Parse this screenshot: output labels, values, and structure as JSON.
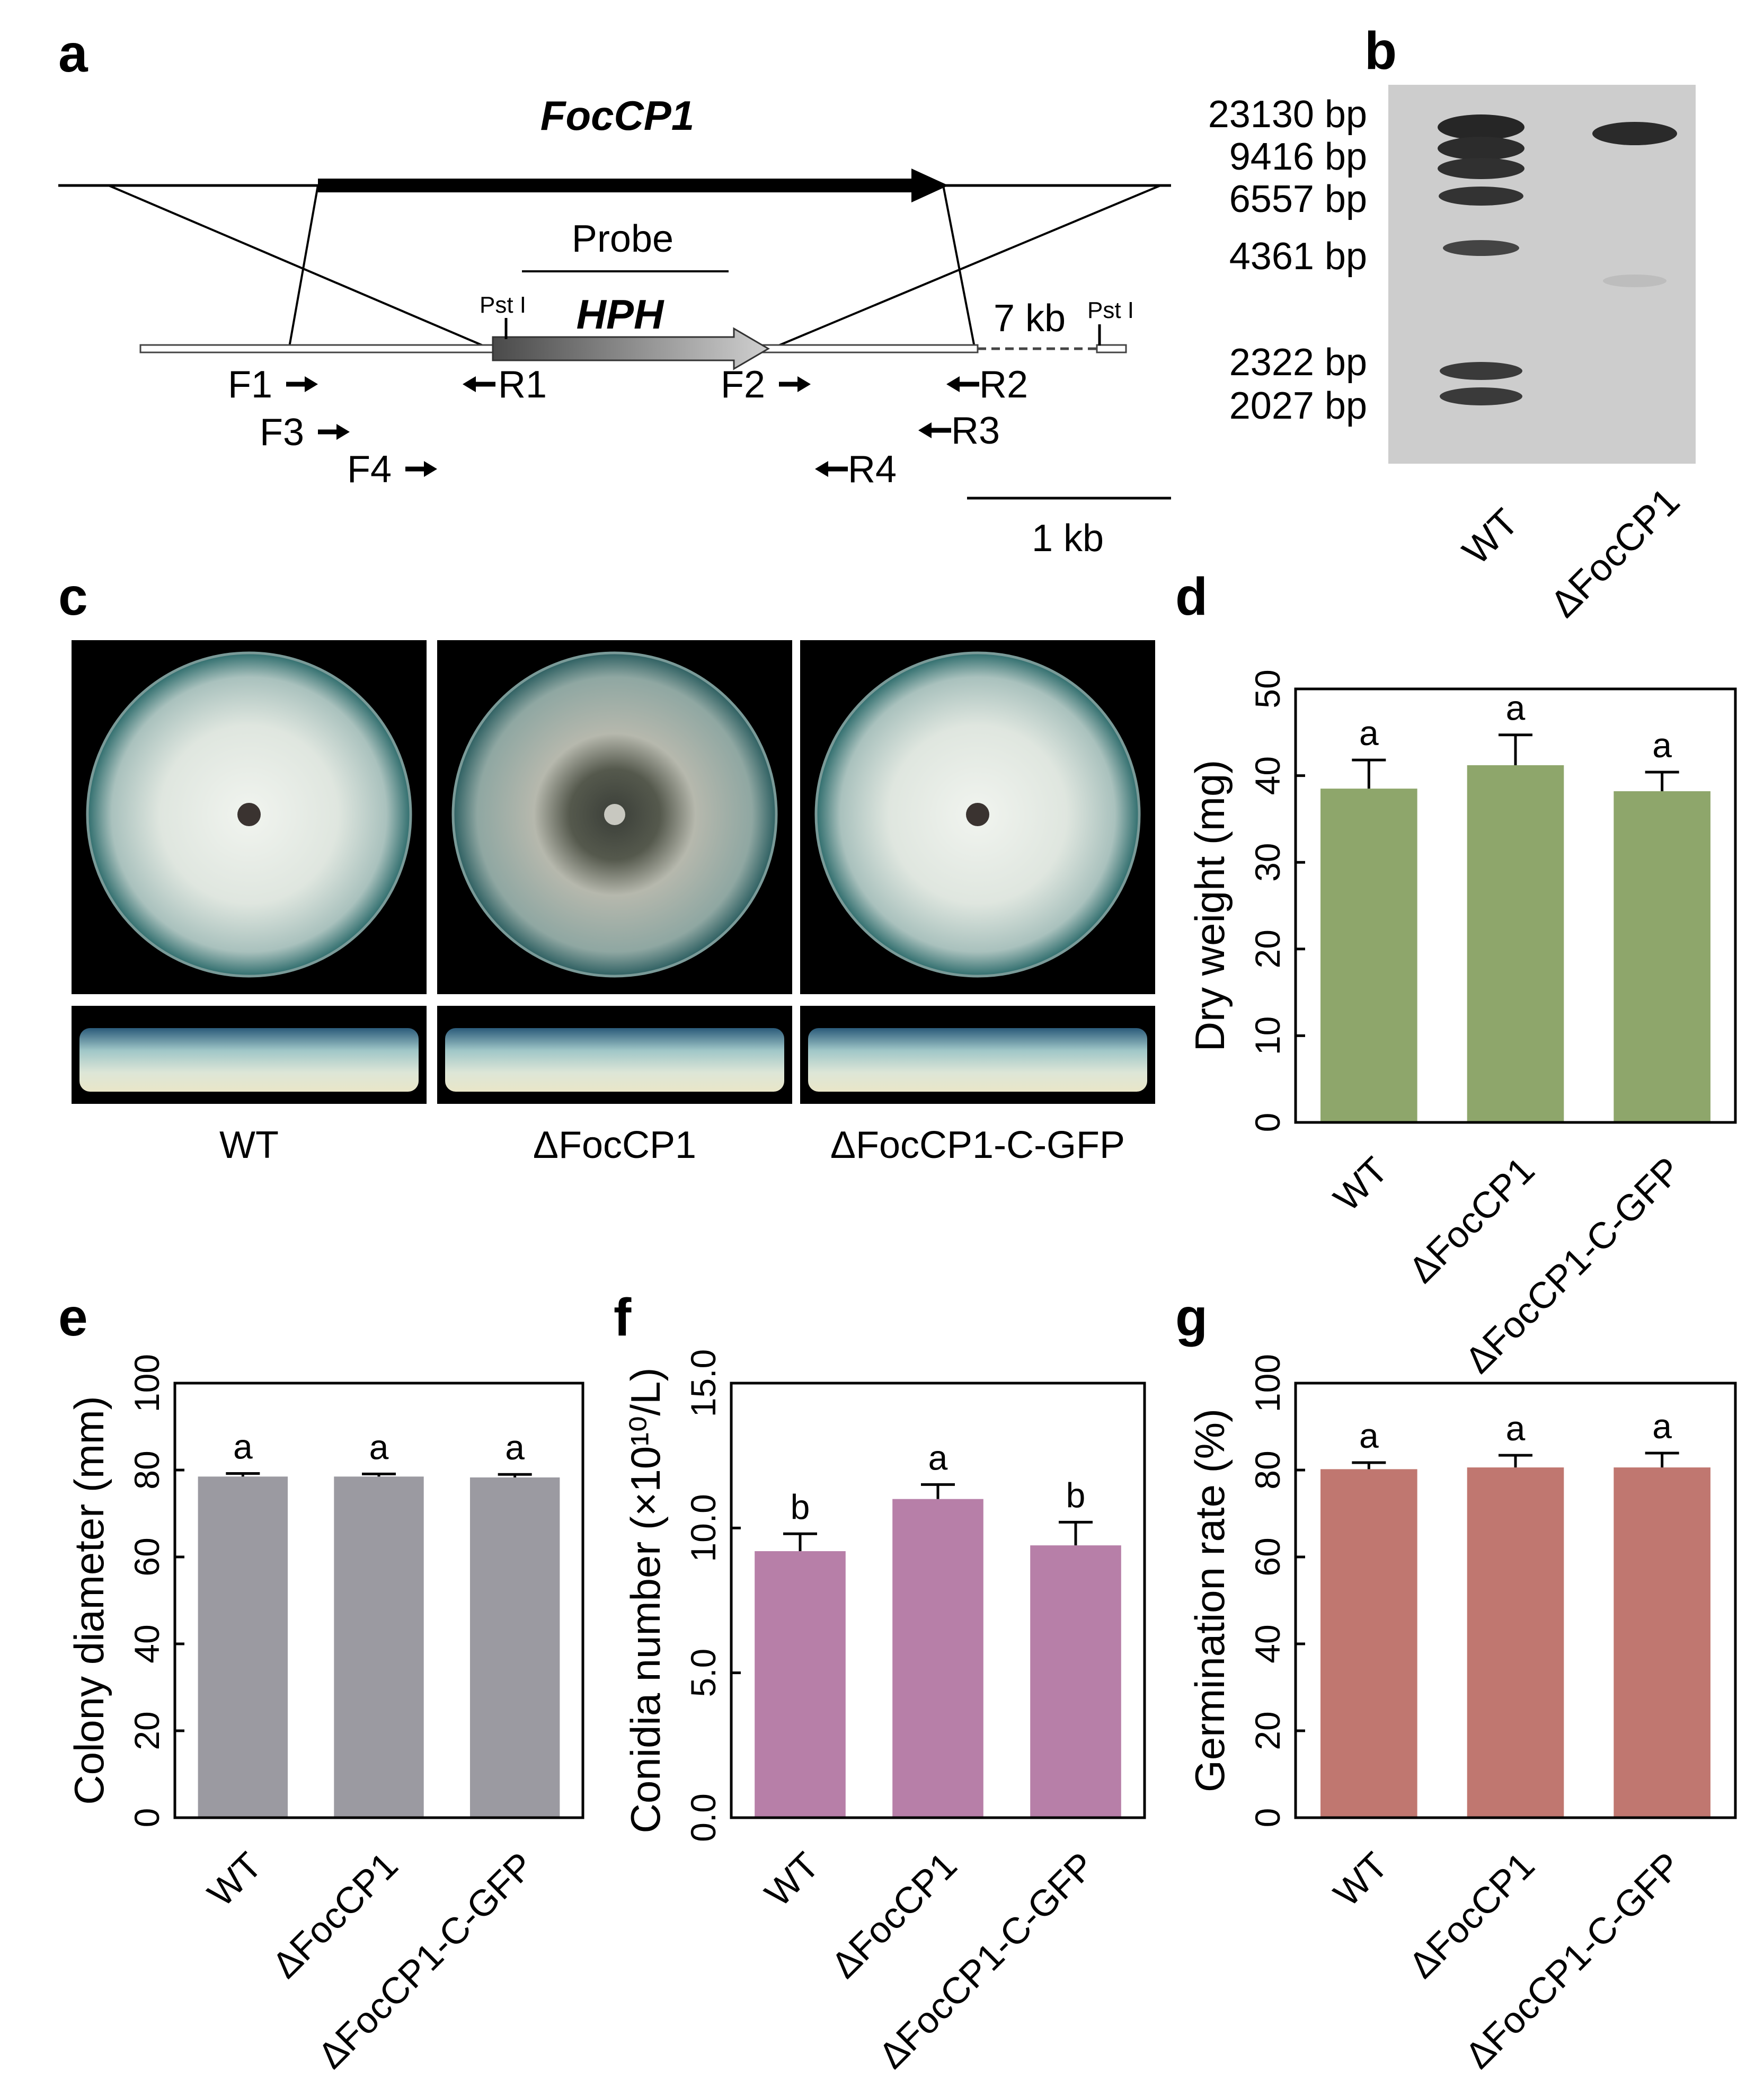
{
  "panel_letters": [
    "a",
    "b",
    "c",
    "d",
    "e",
    "f",
    "g"
  ],
  "panel_a": {
    "gene_label": "FocCP1",
    "probe_label": "Probe",
    "marker_label": "HPH",
    "site_label_left": "Pst I",
    "site_label_right": "Pst I",
    "distance_label": "7 kb",
    "scalebar_label": "1 kb",
    "primers": {
      "F1": "F1",
      "F3": "F3",
      "F4": "F4",
      "R1": "R1",
      "F2": "F2",
      "R2": "R2",
      "R3": "R3",
      "R4": "R4"
    }
  },
  "panel_b": {
    "ladder": [
      "23130 bp",
      "9416 bp",
      "6557 bp",
      "4361 bp",
      "2322 bp",
      "2027 bp"
    ],
    "lanes": [
      "WT",
      "ΔFocCP1"
    ]
  },
  "panel_c": {
    "strains": [
      "WT",
      "ΔFocCP1",
      "ΔFocCP1-C-GFP"
    ]
  },
  "colors": {
    "dry_weight_bar": "#8ea66b",
    "colony_bar": "#9b9aa1",
    "conidia_bar": "#b77fa8",
    "germination_bar": "#c07770",
    "plate_background": "#000000"
  },
  "chart_data": [
    {
      "panel": "d",
      "type": "bar",
      "categories": [
        "WT",
        "ΔFocCP1",
        "ΔFocCP1-C-GFP"
      ],
      "values": [
        38.5,
        41.2,
        38.2
      ],
      "errors": [
        3.3,
        3.5,
        2.2
      ],
      "significance": [
        "a",
        "a",
        "a"
      ],
      "ylabel": "Dry weight  (mg)",
      "ylim": [
        0,
        50
      ],
      "yticks": [
        "0",
        "10",
        "20",
        "30",
        "40",
        "50"
      ]
    },
    {
      "panel": "e",
      "type": "bar",
      "categories": [
        "WT",
        "ΔFocCP1",
        "ΔFocCP1-C-GFP"
      ],
      "values": [
        78.5,
        78.5,
        78.3
      ],
      "errors": [
        0.7,
        0.6,
        0.7
      ],
      "significance": [
        "a",
        "a",
        "a"
      ],
      "ylabel": "Colony diameter (mm)",
      "ylim": [
        0,
        100
      ],
      "yticks": [
        "0",
        "20",
        "40",
        "60",
        "80",
        "100"
      ]
    },
    {
      "panel": "f",
      "type": "bar",
      "categories": [
        "WT",
        "ΔFocCP1",
        "ΔFocCP1-C-GFP"
      ],
      "values": [
        9.2,
        11.0,
        9.4
      ],
      "errors": [
        0.6,
        0.5,
        0.8
      ],
      "significance": [
        "b",
        "a",
        "b"
      ],
      "ylabel": "Conidia number (×10¹⁰/L)",
      "ylim": [
        0,
        15
      ],
      "yticks": [
        "0.0",
        "5.0",
        "10.0",
        "15.0"
      ]
    },
    {
      "panel": "g",
      "type": "bar",
      "categories": [
        "WT",
        "ΔFocCP1",
        "ΔFocCP1-C-GFP"
      ],
      "values": [
        80.2,
        80.6,
        80.6
      ],
      "errors": [
        1.5,
        2.8,
        3.3
      ],
      "significance": [
        "a",
        "a",
        "a"
      ],
      "ylabel": "Germination rate (%)",
      "ylim": [
        0,
        100
      ],
      "yticks": [
        "0",
        "20",
        "40",
        "60",
        "80",
        "100"
      ]
    }
  ]
}
